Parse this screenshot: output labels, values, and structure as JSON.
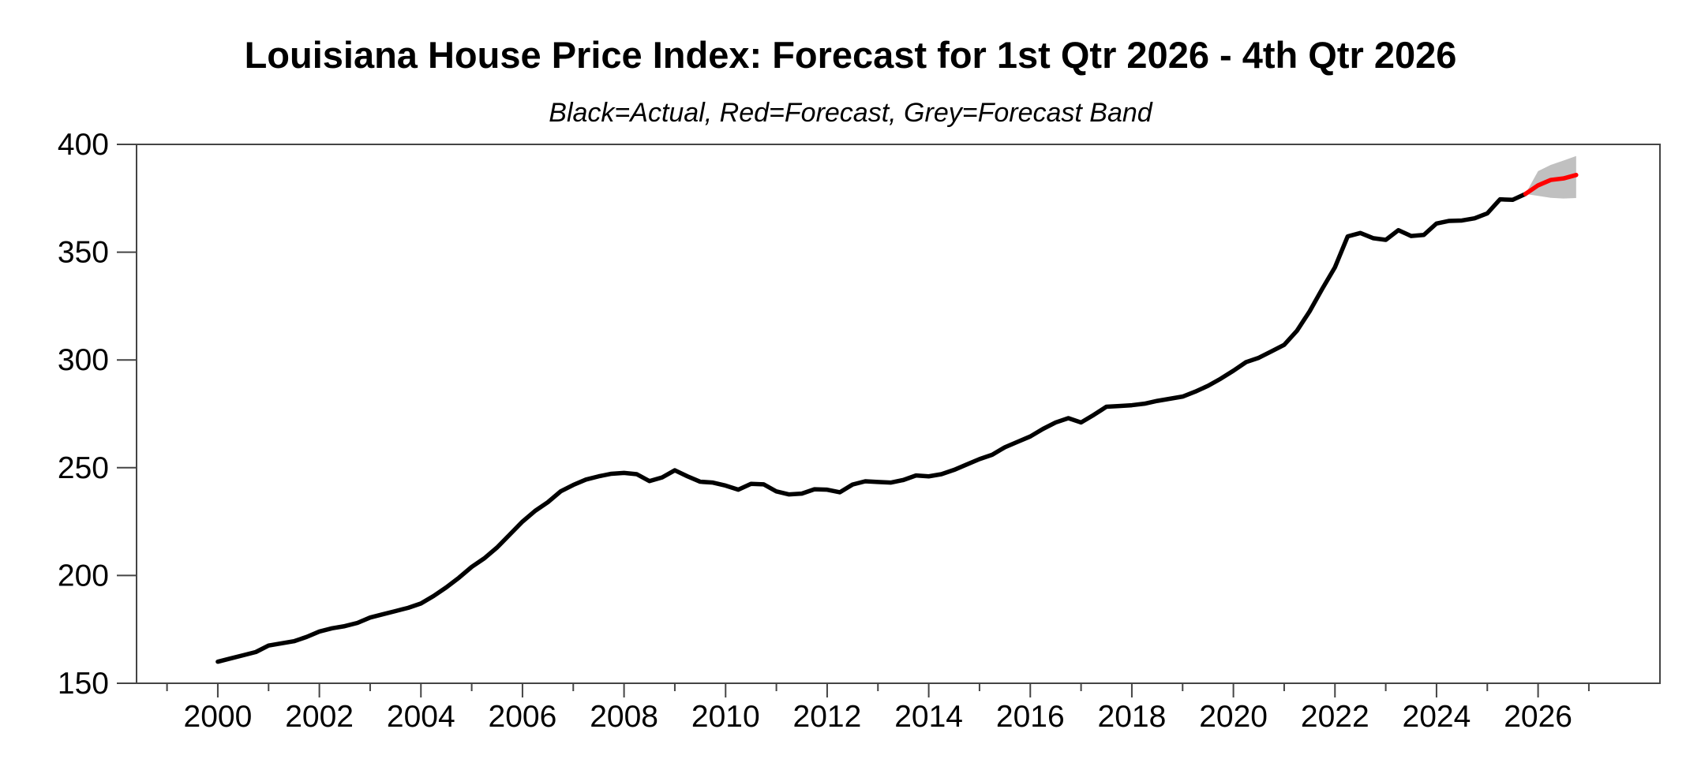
{
  "header": {
    "title": "Louisiana House Price Index: Forecast for 1st Qtr 2026 - 4th Qtr 2026",
    "subtitle": "Black=Actual, Red=Forecast, Grey=Forecast Band"
  },
  "chart_data": {
    "type": "line",
    "title": "Louisiana House Price Index: Forecast for 1st Qtr 2026 - 4th Qtr 2026",
    "subtitle": "Black=Actual, Red=Forecast, Grey=Forecast Band",
    "xlabel": "",
    "ylabel": "",
    "xlim": [
      1998.4,
      2028.4
    ],
    "ylim": [
      150,
      400
    ],
    "yticks": [
      150,
      200,
      250,
      300,
      350,
      400
    ],
    "xticks_major": [
      2000,
      2002,
      2004,
      2006,
      2008,
      2010,
      2012,
      2014,
      2016,
      2018,
      2020,
      2022,
      2024,
      2026
    ],
    "xticks_minor": [
      1999,
      2001,
      2003,
      2005,
      2007,
      2009,
      2011,
      2013,
      2015,
      2017,
      2019,
      2021,
      2023,
      2025,
      2027
    ],
    "grid": false,
    "legend_position": "none",
    "colors": {
      "actual": "#000000",
      "forecast": "#ff0000",
      "band": "#c0c0c0",
      "axis": "#444444"
    },
    "series": [
      {
        "name": "Actual",
        "color_key": "actual",
        "x_start": 2000.0,
        "x_step": 0.25,
        "values": [
          160,
          161.5,
          163,
          164.5,
          167.5,
          168.5,
          169.5,
          171.5,
          174,
          175.5,
          176.5,
          178,
          180.5,
          182,
          183.5,
          185,
          187,
          190.5,
          194.5,
          199,
          204,
          208,
          213,
          219,
          225,
          230,
          234,
          239,
          242,
          244.5,
          246,
          247.2,
          247.6,
          247,
          243.8,
          245.5,
          248.8,
          246,
          243.5,
          243.1,
          241.7,
          239.8,
          242.5,
          242.3,
          239,
          237.6,
          238,
          240,
          239.8,
          238.6,
          242.2,
          243.7,
          243.4,
          243.1,
          244.3,
          246.4,
          246,
          247,
          249,
          251.5,
          254,
          256,
          259.5,
          262,
          264.5,
          268,
          271,
          273,
          271,
          274.5,
          278.3,
          278.6,
          279,
          279.7,
          281,
          282,
          283,
          285.3,
          288,
          291.3,
          295,
          299,
          301,
          304,
          307,
          313.5,
          322.5,
          333,
          343,
          357.3,
          358.9,
          356.5,
          355.7,
          360.2,
          357.5,
          358,
          363.3,
          364.5,
          364.7,
          365.7,
          368,
          374.5,
          374.3,
          377
        ]
      },
      {
        "name": "Forecast",
        "color_key": "forecast",
        "x_start": 2025.75,
        "x_step": 0.25,
        "values": [
          377,
          381,
          383.5,
          384.2,
          385.8
        ]
      }
    ],
    "band": {
      "name": "Forecast Band",
      "color_key": "band",
      "x": [
        2025.75,
        2026.0,
        2026.25,
        2026.5,
        2026.75
      ],
      "lower": [
        377,
        376.1,
        375.2,
        374.9,
        375.1
      ],
      "upper": [
        377,
        387.6,
        390.5,
        392.5,
        394.6
      ]
    }
  }
}
